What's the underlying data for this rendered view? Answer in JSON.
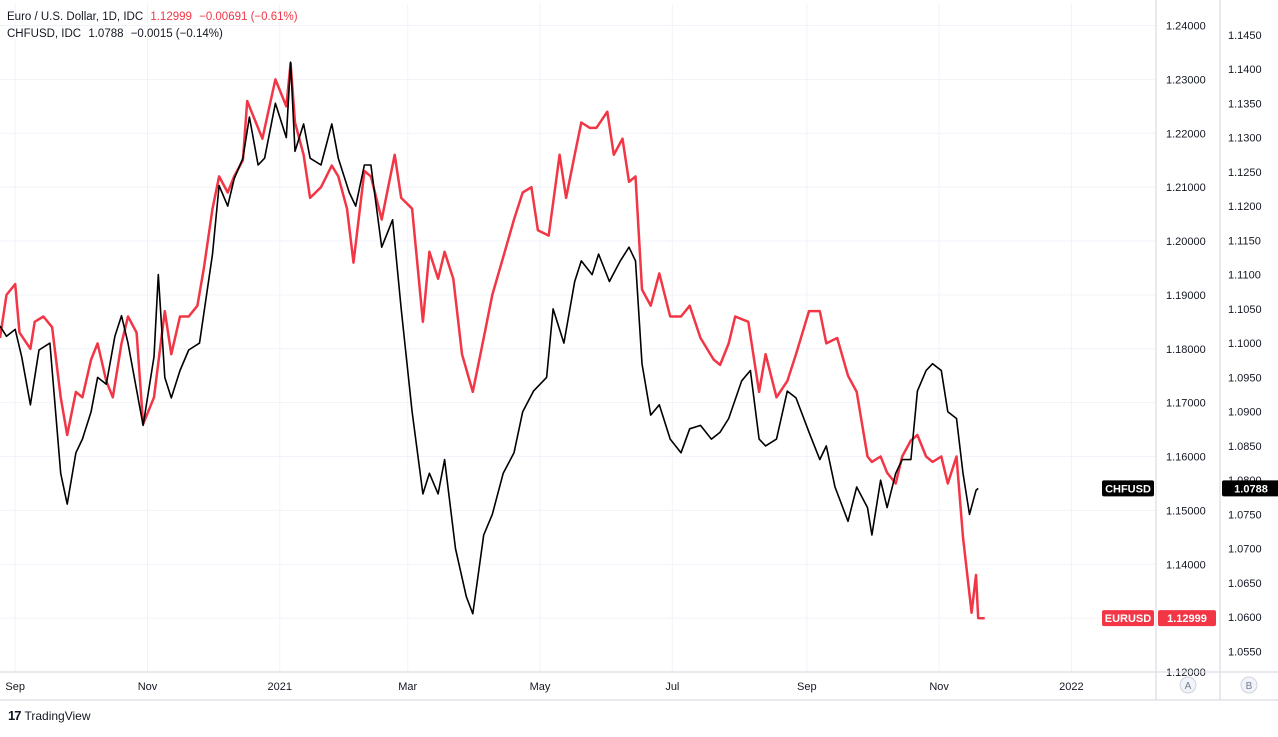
{
  "legend": {
    "eur_title": "Euro / U.S. Dollar, 1D, IDC",
    "eur_last": "1.12999",
    "eur_change": "−0.00691 (−0.61%)",
    "chf_title": "CHFUSD, IDC",
    "chf_last": "1.0788",
    "chf_change": "−0.0015 (−0.14%)"
  },
  "footer": {
    "logo": "17",
    "brand": "TradingView"
  },
  "scale_buttons": {
    "a": "A",
    "b": "B"
  },
  "colors": {
    "eurusd": "#f23645",
    "chfusd": "#000000",
    "grid": "#f0f3fa",
    "axis_text": "#131722"
  },
  "chart_data": {
    "type": "line",
    "x_ticks": [
      {
        "label": "Sep",
        "date": "2020-09-01"
      },
      {
        "label": "Nov",
        "date": "2020-11-01"
      },
      {
        "label": "2021",
        "date": "2021-01-01"
      },
      {
        "label": "Mar",
        "date": "2021-03-01"
      },
      {
        "label": "May",
        "date": "2021-05-01"
      },
      {
        "label": "Jul",
        "date": "2021-07-01"
      },
      {
        "label": "Sep",
        "date": "2021-09-01"
      },
      {
        "label": "Nov",
        "date": "2021-11-01"
      },
      {
        "label": "2022",
        "date": "2022-01-01"
      }
    ],
    "x_range": [
      "2020-08-25",
      "2022-02-09"
    ],
    "axis_a": {
      "series": "EURUSD",
      "range": [
        1.12,
        1.244
      ],
      "ticks": [
        "1.12000",
        "1.13000",
        "1.14000",
        "1.15000",
        "1.16000",
        "1.17000",
        "1.18000",
        "1.19000",
        "1.20000",
        "1.21000",
        "1.22000",
        "1.23000",
        "1.24000"
      ]
    },
    "axis_b": {
      "series": "CHFUSD",
      "range": [
        1.052,
        1.1495
      ],
      "ticks": [
        "1.0550",
        "1.0600",
        "1.0650",
        "1.0700",
        "1.0750",
        "1.0800",
        "1.0850",
        "1.0900",
        "1.0950",
        "1.1000",
        "1.1050",
        "1.1100",
        "1.1150",
        "1.1200",
        "1.1250",
        "1.1300",
        "1.1350",
        "1.1400",
        "1.1450"
      ]
    },
    "series": [
      {
        "name": "EURUSD",
        "axis": "a",
        "last_label": "1.12999",
        "points": [
          [
            "2020-08-25",
            1.182
          ],
          [
            "2020-08-28",
            1.19
          ],
          [
            "2020-09-01",
            1.192
          ],
          [
            "2020-09-03",
            1.183
          ],
          [
            "2020-09-08",
            1.18
          ],
          [
            "2020-09-10",
            1.185
          ],
          [
            "2020-09-14",
            1.186
          ],
          [
            "2020-09-18",
            1.184
          ],
          [
            "2020-09-22",
            1.171
          ],
          [
            "2020-09-25",
            1.164
          ],
          [
            "2020-09-29",
            1.172
          ],
          [
            "2020-10-02",
            1.171
          ],
          [
            "2020-10-06",
            1.178
          ],
          [
            "2020-10-09",
            1.181
          ],
          [
            "2020-10-13",
            1.174
          ],
          [
            "2020-10-16",
            1.171
          ],
          [
            "2020-10-20",
            1.181
          ],
          [
            "2020-10-23",
            1.186
          ],
          [
            "2020-10-27",
            1.183
          ],
          [
            "2020-10-30",
            1.166
          ],
          [
            "2020-11-04",
            1.171
          ],
          [
            "2020-11-09",
            1.187
          ],
          [
            "2020-11-12",
            1.179
          ],
          [
            "2020-11-16",
            1.186
          ],
          [
            "2020-11-20",
            1.186
          ],
          [
            "2020-11-24",
            1.188
          ],
          [
            "2020-11-27",
            1.195
          ],
          [
            "2020-12-01",
            1.206
          ],
          [
            "2020-12-04",
            1.212
          ],
          [
            "2020-12-08",
            1.209
          ],
          [
            "2020-12-11",
            1.212
          ],
          [
            "2020-12-15",
            1.215
          ],
          [
            "2020-12-17",
            1.226
          ],
          [
            "2020-12-21",
            1.222
          ],
          [
            "2020-12-24",
            1.219
          ],
          [
            "2020-12-30",
            1.23
          ],
          [
            "2021-01-04",
            1.225
          ],
          [
            "2021-01-06",
            1.233
          ],
          [
            "2021-01-08",
            1.222
          ],
          [
            "2021-01-12",
            1.216
          ],
          [
            "2021-01-15",
            1.208
          ],
          [
            "2021-01-20",
            1.21
          ],
          [
            "2021-01-25",
            1.214
          ],
          [
            "2021-01-28",
            1.212
          ],
          [
            "2021-02-01",
            1.206
          ],
          [
            "2021-02-04",
            1.196
          ],
          [
            "2021-02-09",
            1.213
          ],
          [
            "2021-02-12",
            1.212
          ],
          [
            "2021-02-17",
            1.204
          ],
          [
            "2021-02-23",
            1.216
          ],
          [
            "2021-02-26",
            1.208
          ],
          [
            "2021-03-03",
            1.206
          ],
          [
            "2021-03-08",
            1.185
          ],
          [
            "2021-03-11",
            1.198
          ],
          [
            "2021-03-15",
            1.193
          ],
          [
            "2021-03-18",
            1.198
          ],
          [
            "2021-03-22",
            1.193
          ],
          [
            "2021-03-26",
            1.179
          ],
          [
            "2021-03-31",
            1.172
          ],
          [
            "2021-04-05",
            1.182
          ],
          [
            "2021-04-09",
            1.19
          ],
          [
            "2021-04-14",
            1.197
          ],
          [
            "2021-04-19",
            1.204
          ],
          [
            "2021-04-23",
            1.209
          ],
          [
            "2021-04-27",
            1.21
          ],
          [
            "2021-04-30",
            1.202
          ],
          [
            "2021-05-05",
            1.201
          ],
          [
            "2021-05-10",
            1.216
          ],
          [
            "2021-05-13",
            1.208
          ],
          [
            "2021-05-17",
            1.216
          ],
          [
            "2021-05-20",
            1.222
          ],
          [
            "2021-05-24",
            1.221
          ],
          [
            "2021-05-27",
            1.221
          ],
          [
            "2021-06-01",
            1.224
          ],
          [
            "2021-06-04",
            1.216
          ],
          [
            "2021-06-08",
            1.219
          ],
          [
            "2021-06-11",
            1.211
          ],
          [
            "2021-06-14",
            1.212
          ],
          [
            "2021-06-17",
            1.191
          ],
          [
            "2021-06-21",
            1.188
          ],
          [
            "2021-06-25",
            1.194
          ],
          [
            "2021-06-30",
            1.186
          ],
          [
            "2021-07-05",
            1.186
          ],
          [
            "2021-07-09",
            1.188
          ],
          [
            "2021-07-14",
            1.182
          ],
          [
            "2021-07-20",
            1.178
          ],
          [
            "2021-07-23",
            1.177
          ],
          [
            "2021-07-27",
            1.181
          ],
          [
            "2021-07-30",
            1.186
          ],
          [
            "2021-08-05",
            1.185
          ],
          [
            "2021-08-10",
            1.172
          ],
          [
            "2021-08-13",
            1.179
          ],
          [
            "2021-08-18",
            1.171
          ],
          [
            "2021-08-23",
            1.174
          ],
          [
            "2021-08-27",
            1.179
          ],
          [
            "2021-09-02",
            1.187
          ],
          [
            "2021-09-07",
            1.187
          ],
          [
            "2021-09-10",
            1.181
          ],
          [
            "2021-09-15",
            1.182
          ],
          [
            "2021-09-20",
            1.175
          ],
          [
            "2021-09-24",
            1.172
          ],
          [
            "2021-09-29",
            1.16
          ],
          [
            "2021-10-01",
            1.159
          ],
          [
            "2021-10-05",
            1.16
          ],
          [
            "2021-10-08",
            1.157
          ],
          [
            "2021-10-12",
            1.155
          ],
          [
            "2021-10-15",
            1.16
          ],
          [
            "2021-10-19",
            1.163
          ],
          [
            "2021-10-22",
            1.164
          ],
          [
            "2021-10-26",
            1.16
          ],
          [
            "2021-10-29",
            1.159
          ],
          [
            "2021-11-02",
            1.16
          ],
          [
            "2021-11-05",
            1.155
          ],
          [
            "2021-11-09",
            1.16
          ],
          [
            "2021-11-12",
            1.145
          ],
          [
            "2021-11-16",
            1.131
          ],
          [
            "2021-11-18",
            1.138
          ],
          [
            "2021-11-19",
            1.13
          ],
          [
            "2021-11-22",
            1.12999
          ]
        ]
      },
      {
        "name": "CHFUSD",
        "axis": "b",
        "last_label": "1.0788",
        "points": [
          [
            "2020-08-25",
            1.1025
          ],
          [
            "2020-08-28",
            1.101
          ],
          [
            "2020-09-01",
            1.102
          ],
          [
            "2020-09-04",
            1.098
          ],
          [
            "2020-09-08",
            1.091
          ],
          [
            "2020-09-12",
            1.099
          ],
          [
            "2020-09-17",
            1.1
          ],
          [
            "2020-09-22",
            1.081
          ],
          [
            "2020-09-25",
            1.0765
          ],
          [
            "2020-09-29",
            1.084
          ],
          [
            "2020-10-02",
            1.086
          ],
          [
            "2020-10-06",
            1.09
          ],
          [
            "2020-10-09",
            1.095
          ],
          [
            "2020-10-13",
            1.094
          ],
          [
            "2020-10-17",
            1.101
          ],
          [
            "2020-10-20",
            1.104
          ],
          [
            "2020-10-23",
            1.1
          ],
          [
            "2020-10-30",
            1.088
          ],
          [
            "2020-11-04",
            1.098
          ],
          [
            "2020-11-06",
            1.11
          ],
          [
            "2020-11-09",
            1.095
          ],
          [
            "2020-11-12",
            1.092
          ],
          [
            "2020-11-16",
            1.096
          ],
          [
            "2020-11-20",
            1.099
          ],
          [
            "2020-11-25",
            1.1
          ],
          [
            "2020-12-01",
            1.113
          ],
          [
            "2020-12-04",
            1.123
          ],
          [
            "2020-12-08",
            1.12
          ],
          [
            "2020-12-11",
            1.124
          ],
          [
            "2020-12-15",
            1.127
          ],
          [
            "2020-12-18",
            1.133
          ],
          [
            "2020-12-22",
            1.126
          ],
          [
            "2020-12-25",
            1.127
          ],
          [
            "2020-12-30",
            1.135
          ],
          [
            "2021-01-04",
            1.13
          ],
          [
            "2021-01-06",
            1.141
          ],
          [
            "2021-01-08",
            1.128
          ],
          [
            "2021-01-12",
            1.132
          ],
          [
            "2021-01-15",
            1.127
          ],
          [
            "2021-01-20",
            1.126
          ],
          [
            "2021-01-25",
            1.132
          ],
          [
            "2021-01-28",
            1.127
          ],
          [
            "2021-02-02",
            1.122
          ],
          [
            "2021-02-05",
            1.12
          ],
          [
            "2021-02-09",
            1.126
          ],
          [
            "2021-02-12",
            1.126
          ],
          [
            "2021-02-17",
            1.114
          ],
          [
            "2021-02-22",
            1.118
          ],
          [
            "2021-02-26",
            1.105
          ],
          [
            "2021-03-03",
            1.09
          ],
          [
            "2021-03-08",
            1.078
          ],
          [
            "2021-03-11",
            1.081
          ],
          [
            "2021-03-15",
            1.078
          ],
          [
            "2021-03-18",
            1.083
          ],
          [
            "2021-03-23",
            1.07
          ],
          [
            "2021-03-28",
            1.063
          ],
          [
            "2021-03-31",
            1.0605
          ],
          [
            "2021-04-05",
            1.072
          ],
          [
            "2021-04-09",
            1.075
          ],
          [
            "2021-04-14",
            1.081
          ],
          [
            "2021-04-19",
            1.084
          ],
          [
            "2021-04-23",
            1.09
          ],
          [
            "2021-04-28",
            1.093
          ],
          [
            "2021-05-04",
            1.095
          ],
          [
            "2021-05-07",
            1.105
          ],
          [
            "2021-05-12",
            1.1
          ],
          [
            "2021-05-17",
            1.109
          ],
          [
            "2021-05-20",
            1.112
          ],
          [
            "2021-05-25",
            1.11
          ],
          [
            "2021-05-28",
            1.113
          ],
          [
            "2021-06-02",
            1.109
          ],
          [
            "2021-06-07",
            1.112
          ],
          [
            "2021-06-11",
            1.114
          ],
          [
            "2021-06-14",
            1.112
          ],
          [
            "2021-06-17",
            1.097
          ],
          [
            "2021-06-21",
            1.0895
          ],
          [
            "2021-06-25",
            1.091
          ],
          [
            "2021-06-30",
            1.086
          ],
          [
            "2021-07-05",
            1.084
          ],
          [
            "2021-07-09",
            1.0875
          ],
          [
            "2021-07-14",
            1.088
          ],
          [
            "2021-07-19",
            1.086
          ],
          [
            "2021-07-23",
            1.087
          ],
          [
            "2021-07-27",
            1.089
          ],
          [
            "2021-08-02",
            1.0945
          ],
          [
            "2021-08-06",
            1.096
          ],
          [
            "2021-08-10",
            1.086
          ],
          [
            "2021-08-13",
            1.085
          ],
          [
            "2021-08-18",
            1.086
          ],
          [
            "2021-08-23",
            1.093
          ],
          [
            "2021-08-27",
            1.092
          ],
          [
            "2021-09-02",
            1.087
          ],
          [
            "2021-09-07",
            1.083
          ],
          [
            "2021-09-10",
            1.085
          ],
          [
            "2021-09-14",
            1.079
          ],
          [
            "2021-09-20",
            1.074
          ],
          [
            "2021-09-24",
            1.079
          ],
          [
            "2021-09-29",
            1.076
          ],
          [
            "2021-10-01",
            1.072
          ],
          [
            "2021-10-05",
            1.08
          ],
          [
            "2021-10-08",
            1.076
          ],
          [
            "2021-10-12",
            1.081
          ],
          [
            "2021-10-15",
            1.083
          ],
          [
            "2021-10-19",
            1.083
          ],
          [
            "2021-10-22",
            1.093
          ],
          [
            "2021-10-26",
            1.096
          ],
          [
            "2021-10-29",
            1.097
          ],
          [
            "2021-11-02",
            1.096
          ],
          [
            "2021-11-05",
            1.09
          ],
          [
            "2021-11-09",
            1.089
          ],
          [
            "2021-11-12",
            1.081
          ],
          [
            "2021-11-15",
            1.075
          ],
          [
            "2021-11-18",
            1.0785
          ],
          [
            "2021-11-19",
            1.0788
          ]
        ]
      }
    ],
    "grid": true
  }
}
